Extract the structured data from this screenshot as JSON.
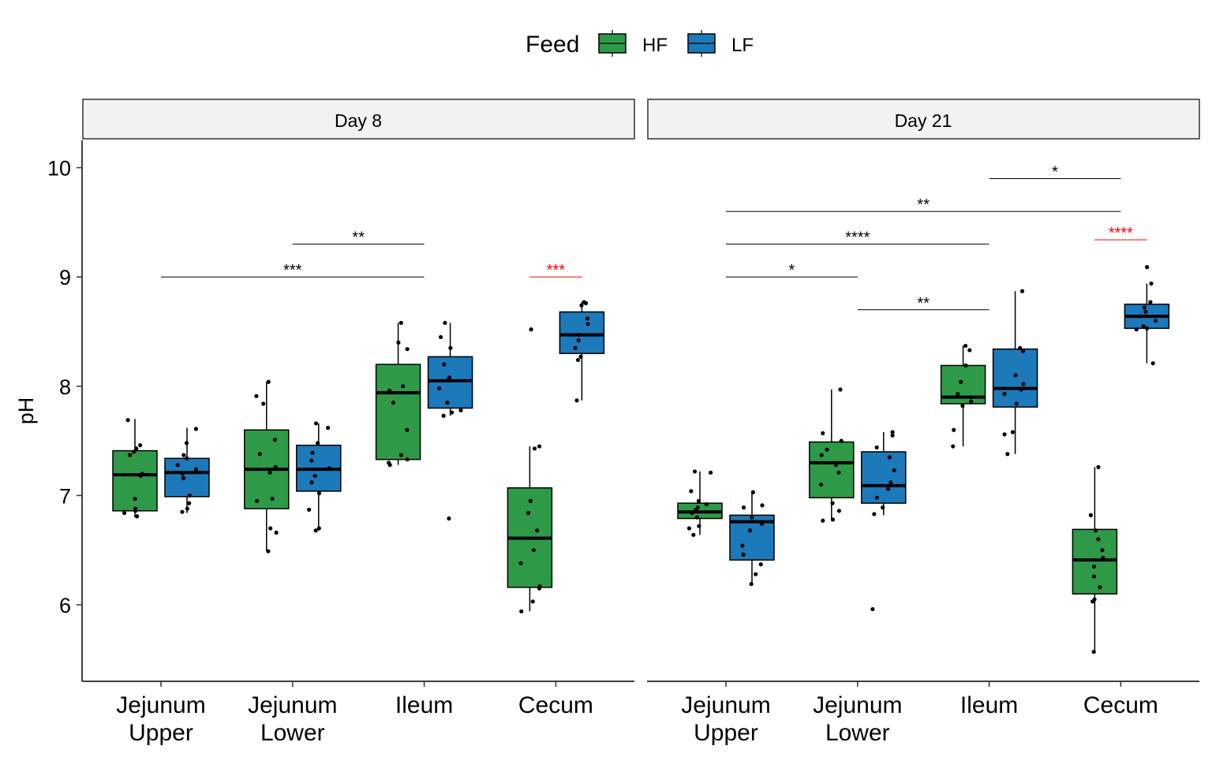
{
  "legend": {
    "title": "Feed",
    "items": [
      {
        "label": "HF",
        "color": "#2E9A48"
      },
      {
        "label": "LF",
        "color": "#1C79BA"
      }
    ],
    "position": "top"
  },
  "colors": {
    "HF": "#2E9A48",
    "LF": "#1C79BA",
    "sig_highlight": "#FF0000",
    "strip_bg": "#F2F2F2"
  },
  "chart_data": {
    "type": "box",
    "ylabel": "pH",
    "ylim": [
      5.3,
      10.25
    ],
    "yticks": [
      6,
      7,
      8,
      9,
      10
    ],
    "grid": false,
    "categories": [
      [
        "Jejunum",
        "Upper"
      ],
      [
        "Jejunum",
        "Lower"
      ],
      [
        "Ileum"
      ],
      [
        "Cecum"
      ]
    ],
    "series_names": [
      "HF",
      "LF"
    ],
    "panels": [
      {
        "name": "Day 8",
        "boxes": [
          {
            "category": 0,
            "series": "HF",
            "min": 6.8,
            "q1": 6.86,
            "median": 7.19,
            "q3": 7.41,
            "max": 7.7,
            "points": [
              7.69,
              7.46,
              7.43,
              7.4,
              7.37,
              7.2,
              7.18,
              6.97,
              6.88,
              6.86,
              6.84,
              6.81
            ]
          },
          {
            "category": 0,
            "series": "LF",
            "min": 6.84,
            "q1": 6.99,
            "median": 7.21,
            "q3": 7.34,
            "max": 7.62,
            "points": [
              7.61,
              7.48,
              7.37,
              7.34,
              7.28,
              7.24,
              7.2,
              7.16,
              7.0,
              6.93,
              6.88,
              6.85
            ]
          },
          {
            "category": 1,
            "series": "HF",
            "min": 6.49,
            "q1": 6.88,
            "median": 7.24,
            "q3": 7.6,
            "max": 8.04,
            "points": [
              8.04,
              7.91,
              7.84,
              7.51,
              7.38,
              7.26,
              7.21,
              6.97,
              6.95,
              6.7,
              6.66,
              6.49
            ]
          },
          {
            "category": 1,
            "series": "LF",
            "min": 6.68,
            "q1": 7.04,
            "median": 7.24,
            "q3": 7.46,
            "max": 7.66,
            "points": [
              7.66,
              7.62,
              7.48,
              7.39,
              7.32,
              7.25,
              7.18,
              7.12,
              7.02,
              6.87,
              6.7,
              6.68
            ]
          },
          {
            "category": 2,
            "series": "HF",
            "min": 7.28,
            "q1": 7.33,
            "median": 7.94,
            "q3": 8.2,
            "max": 8.58,
            "points": [
              8.58,
              8.4,
              8.34,
              8.0,
              7.96,
              7.85,
              7.6,
              7.37,
              7.33,
              7.3,
              7.28
            ]
          },
          {
            "category": 2,
            "series": "LF",
            "min": 7.73,
            "q1": 7.8,
            "median": 8.05,
            "q3": 8.27,
            "max": 8.58,
            "points": [
              8.58,
              8.45,
              8.35,
              8.2,
              8.08,
              8.06,
              7.98,
              7.85,
              7.78,
              7.76,
              7.73,
              6.79
            ]
          },
          {
            "category": 3,
            "series": "HF",
            "min": 5.94,
            "q1": 6.16,
            "median": 6.61,
            "q3": 7.07,
            "max": 7.45,
            "points": [
              8.52,
              7.45,
              7.43,
              6.95,
              6.84,
              6.68,
              6.5,
              6.38,
              6.17,
              6.15,
              6.03,
              5.94
            ]
          },
          {
            "category": 3,
            "series": "LF",
            "min": 7.87,
            "q1": 8.3,
            "median": 8.47,
            "q3": 8.68,
            "max": 8.77,
            "points": [
              8.77,
              8.76,
              8.74,
              8.62,
              8.57,
              8.47,
              8.42,
              8.35,
              8.27,
              8.24,
              7.87
            ]
          }
        ],
        "significance": [
          {
            "from": 0,
            "to": 2,
            "y": 9.0,
            "label": "***",
            "highlight": false
          },
          {
            "from": 1,
            "to": 2,
            "y": 9.3,
            "label": "**",
            "highlight": false
          },
          {
            "from": 2.8,
            "to": 3.2,
            "y": 9.0,
            "label": "***",
            "highlight": true
          }
        ]
      },
      {
        "name": "Day 21",
        "boxes": [
          {
            "category": 0,
            "series": "HF",
            "min": 6.64,
            "q1": 6.79,
            "median": 6.85,
            "q3": 6.93,
            "max": 7.22,
            "points": [
              7.22,
              7.21,
              7.04,
              6.95,
              6.92,
              6.89,
              6.87,
              6.84,
              6.8,
              6.72,
              6.7,
              6.64
            ]
          },
          {
            "category": 0,
            "series": "LF",
            "min": 6.19,
            "q1": 6.41,
            "median": 6.76,
            "q3": 6.82,
            "max": 7.03,
            "points": [
              7.03,
              6.91,
              6.89,
              6.8,
              6.74,
              6.68,
              6.54,
              6.46,
              6.37,
              6.28,
              6.19
            ]
          },
          {
            "category": 1,
            "series": "HF",
            "min": 6.77,
            "q1": 6.98,
            "median": 7.3,
            "q3": 7.49,
            "max": 7.97,
            "points": [
              7.97,
              7.57,
              7.5,
              7.42,
              7.37,
              7.28,
              7.21,
              7.1,
              6.93,
              6.86,
              6.78,
              6.77
            ]
          },
          {
            "category": 1,
            "series": "LF",
            "min": 6.82,
            "q1": 6.93,
            "median": 7.09,
            "q3": 7.4,
            "max": 7.58,
            "points": [
              7.58,
              7.55,
              7.44,
              7.35,
              7.23,
              7.12,
              7.06,
              6.98,
              6.89,
              6.83,
              5.96
            ]
          },
          {
            "category": 2,
            "series": "HF",
            "min": 7.45,
            "q1": 7.84,
            "median": 7.9,
            "q3": 8.19,
            "max": 8.37,
            "points": [
              8.37,
              8.33,
              8.19,
              8.04,
              7.93,
              7.9,
              7.86,
              7.82,
              7.6,
              7.45
            ]
          },
          {
            "category": 2,
            "series": "LF",
            "min": 7.38,
            "q1": 7.81,
            "median": 7.98,
            "q3": 8.34,
            "max": 8.87,
            "points": [
              8.87,
              8.35,
              8.32,
              8.1,
              8.02,
              7.97,
              7.93,
              7.84,
              7.58,
              7.56,
              7.38
            ]
          },
          {
            "category": 3,
            "series": "HF",
            "min": 5.57,
            "q1": 6.1,
            "median": 6.41,
            "q3": 6.69,
            "max": 7.26,
            "points": [
              7.26,
              6.82,
              6.68,
              6.6,
              6.5,
              6.43,
              6.35,
              6.26,
              6.16,
              6.05,
              6.03,
              5.57
            ]
          },
          {
            "category": 3,
            "series": "LF",
            "min": 8.21,
            "q1": 8.53,
            "median": 8.64,
            "q3": 8.75,
            "max": 8.94,
            "points": [
              9.09,
              8.94,
              8.77,
              8.72,
              8.68,
              8.64,
              8.6,
              8.55,
              8.53,
              8.52,
              8.21
            ]
          }
        ],
        "significance": [
          {
            "from": 0,
            "to": 1,
            "y": 9.0,
            "label": "*",
            "highlight": false
          },
          {
            "from": 1,
            "to": 2,
            "y": 8.7,
            "label": "**",
            "highlight": false
          },
          {
            "from": 0,
            "to": 2,
            "y": 9.3,
            "label": "****",
            "highlight": false
          },
          {
            "from": 0,
            "to": 3,
            "y": 9.6,
            "label": "**",
            "highlight": false
          },
          {
            "from": 2,
            "to": 3,
            "y": 9.9,
            "label": "*",
            "highlight": false
          },
          {
            "from": 2.8,
            "to": 3.2,
            "y": 9.34,
            "label": "****",
            "highlight": true
          }
        ]
      }
    ]
  }
}
